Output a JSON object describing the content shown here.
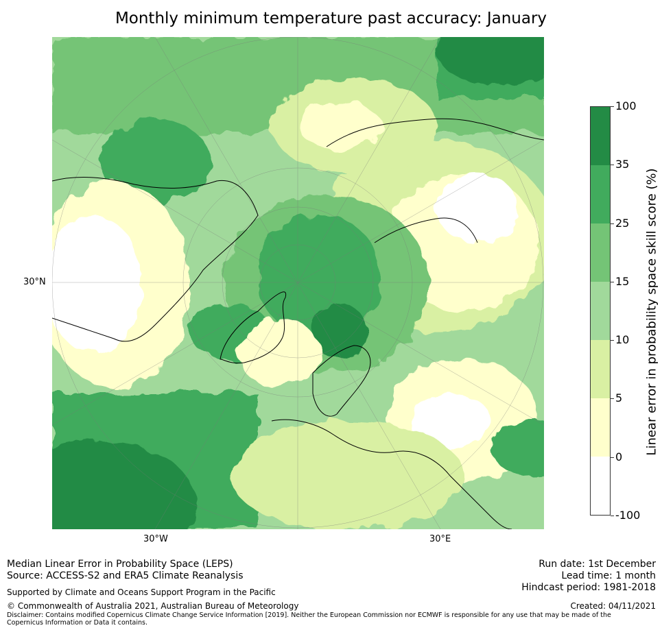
{
  "title": "Monthly minimum temperature past accuracy: January",
  "map": {
    "lat_label": "30°N",
    "lon_labels": [
      "30°W",
      "30°E"
    ]
  },
  "colorbar": {
    "title": "Linear error in probability space skill score (%)",
    "ticks": [
      "100",
      "35",
      "25",
      "15",
      "10",
      "5",
      "0",
      "-100"
    ],
    "colors": [
      "#238b45",
      "#41ab5d",
      "#74c476",
      "#a1d99b",
      "#d9f0a3",
      "#ffffcc",
      "#ffffff"
    ]
  },
  "footer": {
    "line1": "Median Linear Error in Probability Space (LEPS)",
    "line2": "Source: ACCESS-S2 and ERA5 Climate Reanalysis",
    "support": "Supported by Climate and Oceans Support Program in the Pacific",
    "copyright": "© Commonwealth of Australia 2021, Australian Bureau of Meteorology",
    "disclaimer": "Disclaimer: Contains modified Copernicus Climate Change Service Information [2019]. Neither the European Commission nor ECMWF is responsible for any use that may be made of the Copernicus Information or Data it contains.",
    "run_date": "Run date: 1st December",
    "lead_time": "Lead time: 1 month",
    "hindcast": "Hindcast period: 1981-2018",
    "created": "Created: 04/11/2021"
  }
}
